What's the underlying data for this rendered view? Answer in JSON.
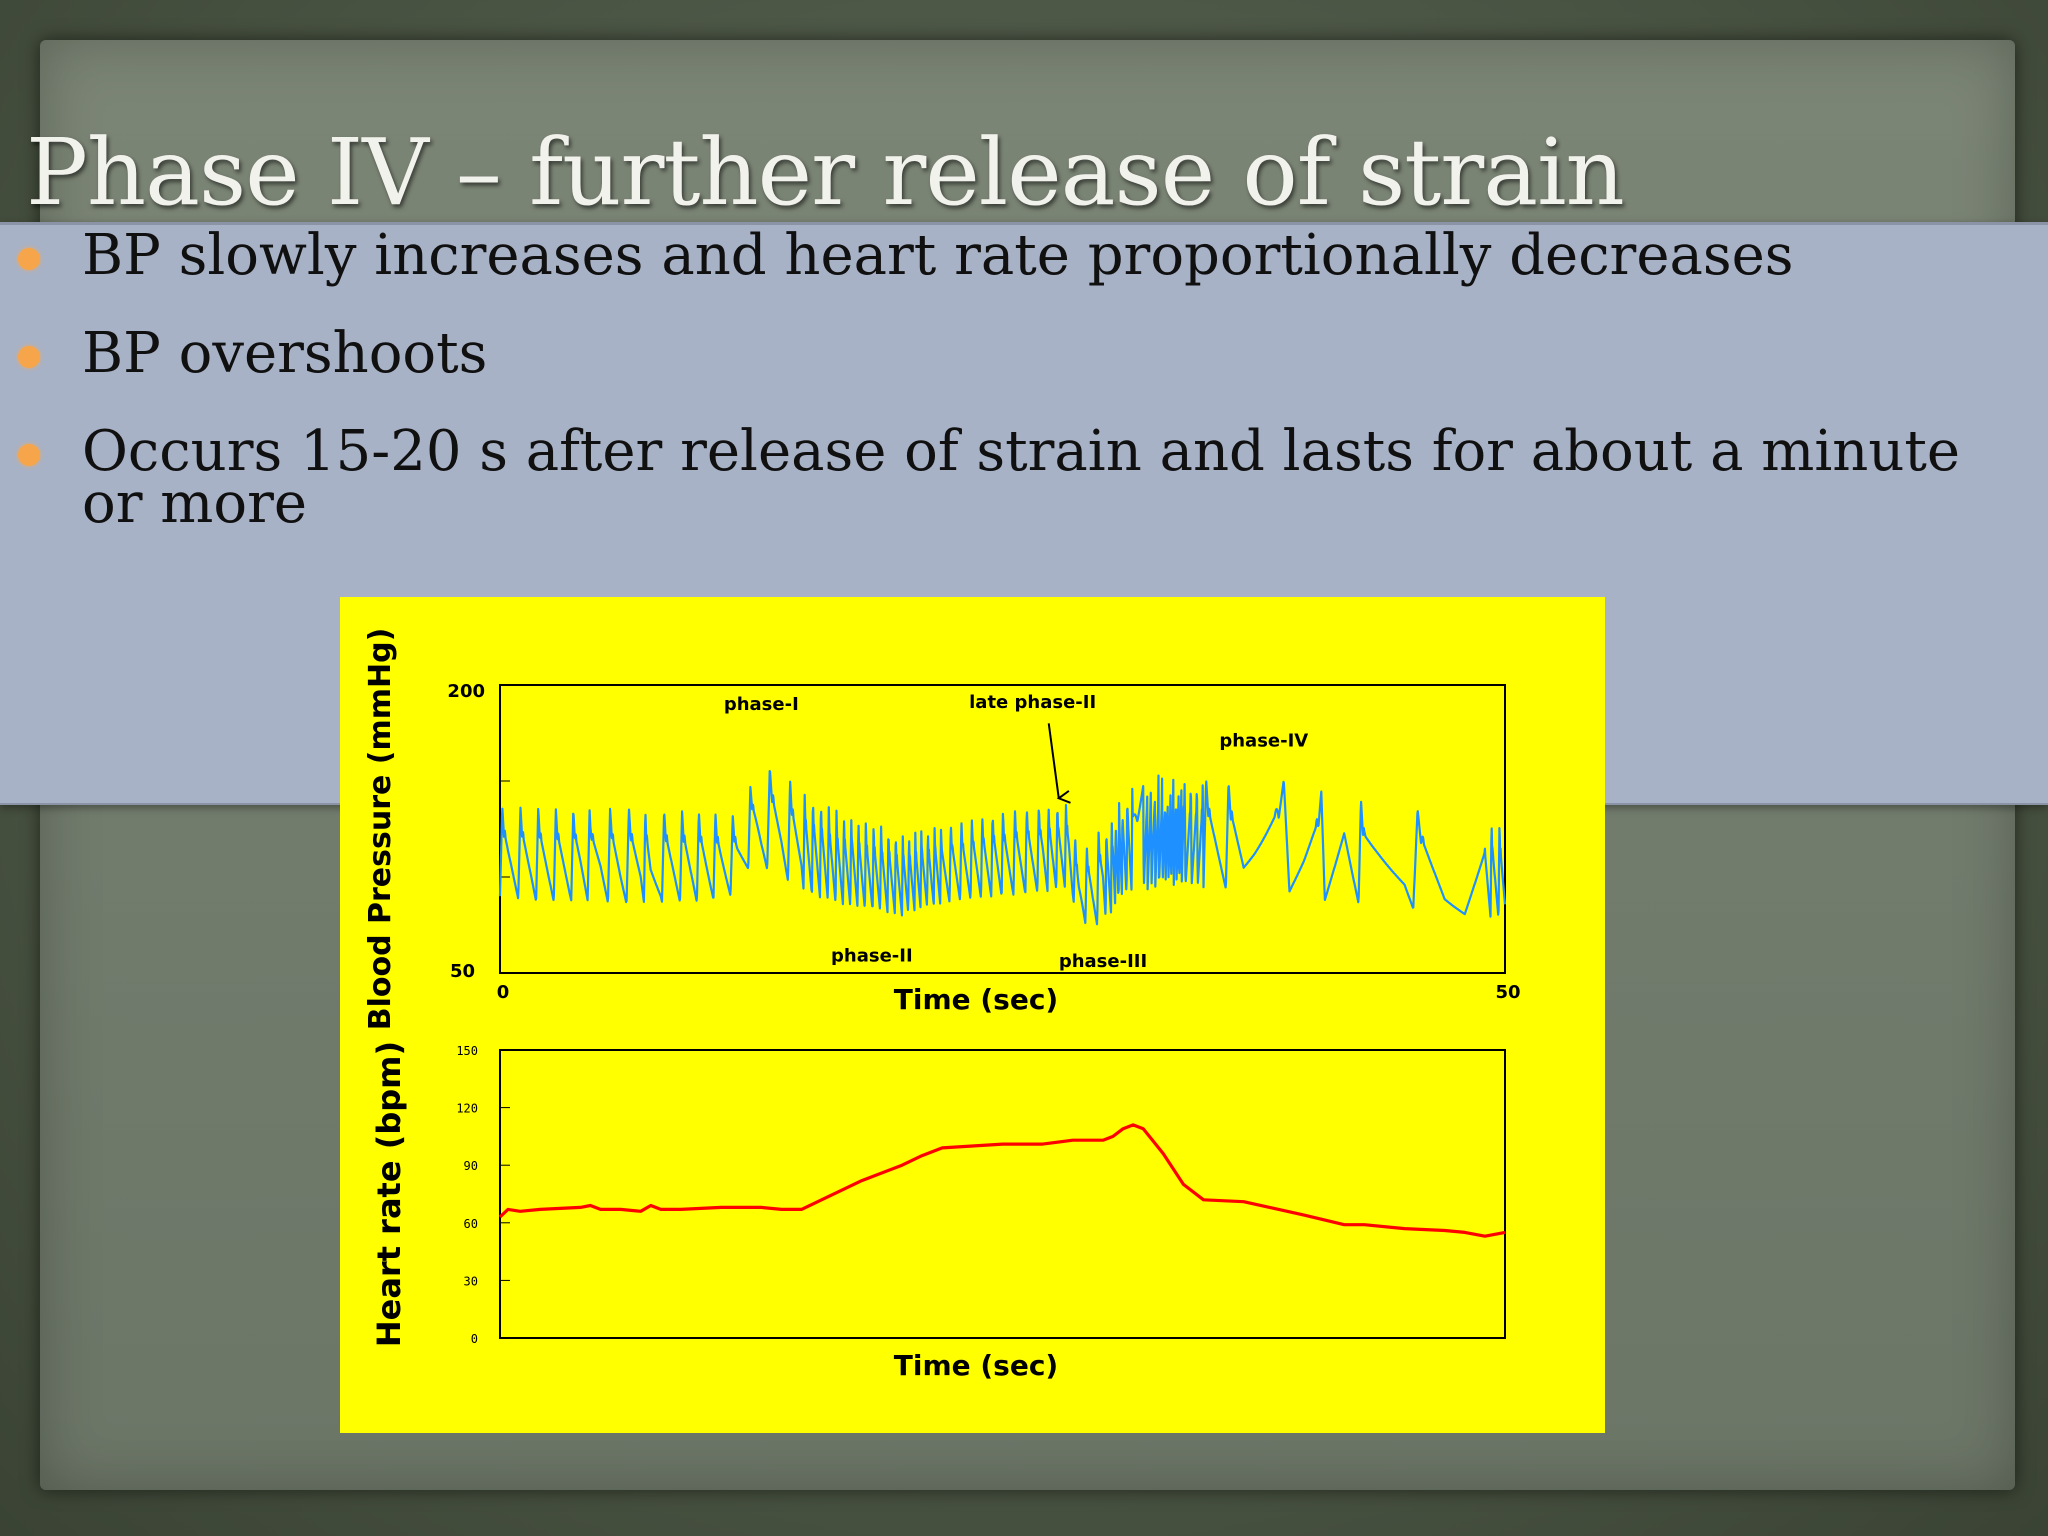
{
  "slide": {
    "title": "Phase IV – further release of strain",
    "bullets": [
      "BP slowly increases and heart rate proportionally decreases",
      "BP overshoots",
      "Occurs 15-20 s after release of strain and lasts for about a minute or more"
    ],
    "colors": {
      "background": "#4f5a49",
      "content_box": "#a8b2c6",
      "bullet_dot": "#f6a54a",
      "figure_bg": "#ffff00",
      "bp_trace": "#1e90ff",
      "hr_trace": "#ff0000"
    }
  },
  "chart_data": [
    {
      "type": "line",
      "ylabel": "Blood Pressure (mmHg)",
      "xlabel": "Time (sec)",
      "xlim": [
        0,
        50
      ],
      "ylim": [
        50,
        200
      ],
      "y_ticks": [
        "200",
        "50"
      ],
      "x_ticks": [
        "0",
        "50"
      ],
      "grid": false,
      "annotations": [
        {
          "label": "phase-I",
          "x": 13,
          "y": 187
        },
        {
          "label": "late phase-II",
          "x": 26.5,
          "y": 188
        },
        {
          "label": "phase-IV",
          "x": 38,
          "y": 168
        },
        {
          "label": "phase-II",
          "x": 18.5,
          "y": 56
        },
        {
          "label": "phase-III",
          "x": 30,
          "y": 53
        }
      ],
      "arrow": {
        "from": [
          27.3,
          180
        ],
        "to": [
          27.8,
          141
        ]
      },
      "series": [
        {
          "envelope_x": [
            0,
            2,
            4,
            6,
            8,
            10,
            11.8,
            12.5,
            13.5,
            14.5,
            15.5,
            17,
            19,
            20,
            21,
            22.5,
            24,
            26,
            27.5,
            28.3,
            28.8,
            29.5,
            30.3,
            31,
            32,
            33,
            34.5,
            36,
            37.5,
            38.5,
            39.5,
            41,
            43,
            45,
            47,
            48.5,
            50
          ],
          "systolic": [
            137,
            136,
            135,
            136,
            135,
            134,
            132,
            148,
            158,
            150,
            142,
            133,
            127,
            122,
            125,
            128,
            132,
            136,
            138,
            139,
            110,
            120,
            130,
            145,
            150,
            154,
            152,
            150,
            147,
            151,
            150,
            144,
            140,
            136,
            134,
            131,
            128
          ],
          "diastolic": [
            90,
            87,
            88,
            86,
            87,
            87,
            91,
            108,
            103,
            97,
            91,
            85,
            82,
            80,
            84,
            87,
            89,
            91,
            93,
            95,
            78,
            73,
            80,
            90,
            93,
            95,
            95,
            94,
            94,
            94,
            92,
            88,
            86,
            84,
            82,
            80,
            78
          ]
        }
      ]
    },
    {
      "type": "line",
      "ylabel": "Heart rate (bpm)",
      "xlabel": "Time (sec)",
      "xlim": [
        0,
        50
      ],
      "ylim": [
        0,
        150
      ],
      "y_ticks": [
        "150",
        "120",
        "90",
        "60",
        "30",
        "0"
      ],
      "grid": false,
      "series": [
        {
          "x": [
            0,
            0.4,
            1,
            2,
            4,
            4.5,
            5,
            6,
            7,
            7.5,
            8,
            9,
            11,
            13,
            14,
            15,
            16,
            18,
            20,
            21,
            22,
            25,
            27,
            28.5,
            29,
            30,
            30.5,
            31,
            31.5,
            32,
            33,
            34,
            35,
            37,
            40,
            42,
            43,
            45,
            47,
            48,
            49,
            50
          ],
          "y": [
            63,
            67,
            66,
            67,
            68,
            69,
            67,
            67,
            66,
            69,
            67,
            67,
            68,
            68,
            67,
            67,
            72,
            82,
            90,
            95,
            99,
            101,
            101,
            103,
            103,
            103,
            105,
            109,
            111,
            109,
            96,
            80,
            72,
            71,
            64,
            59,
            59,
            57,
            56,
            55,
            53,
            55
          ]
        }
      ]
    }
  ]
}
